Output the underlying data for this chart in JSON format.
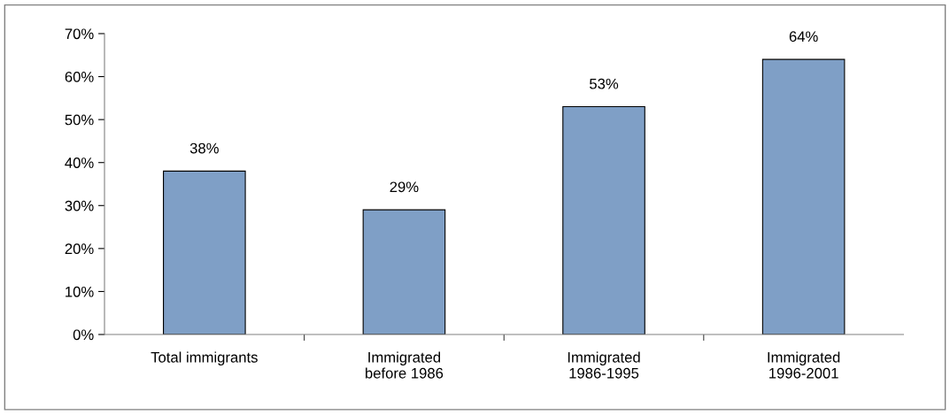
{
  "chart_data": {
    "type": "bar",
    "categories": [
      "Total immigrants",
      "Immigrated\nbefore 1986",
      "Immigrated\n1986-1995",
      "Immigrated\n1996-2001"
    ],
    "values": [
      38,
      29,
      53,
      64
    ],
    "value_labels": [
      "38%",
      "29%",
      "53%",
      "64%"
    ],
    "color": "#7f9fc6",
    "ylim": [
      0,
      70
    ],
    "yticks": [
      {
        "value": 0,
        "label": "0%"
      },
      {
        "value": 10,
        "label": "10%"
      },
      {
        "value": 20,
        "label": "20%"
      },
      {
        "value": 30,
        "label": "30%"
      },
      {
        "value": 40,
        "label": "40%"
      },
      {
        "value": 50,
        "label": "50%"
      },
      {
        "value": 60,
        "label": "60%"
      },
      {
        "value": 70,
        "label": "70%"
      }
    ],
    "grid": false
  }
}
